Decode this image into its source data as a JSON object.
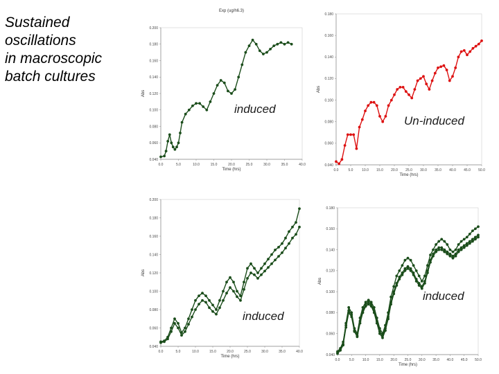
{
  "headline": [
    "Sustained",
    "oscillations",
    "in macroscopic",
    "batch cultures"
  ],
  "chart_data": [
    {
      "type": "line",
      "title": "Exp (ug/h6.3)",
      "label": "induced",
      "xlabel": "Time (hrs)",
      "ylabel": "Abs",
      "color": "#1b4d1b",
      "xticks": [
        "0.0",
        "5.0",
        "10.0",
        "15.0",
        "20.0",
        "25.0",
        "30.0",
        "35.0",
        "40.0"
      ],
      "yticks": [
        "0.040",
        "0.060",
        "0.080",
        "0.100",
        "0.120",
        "0.140",
        "0.160",
        "0.180",
        "0.200"
      ],
      "xlim": [
        0,
        40
      ],
      "ylim": [
        0.04,
        0.2
      ],
      "series": [
        {
          "x": [
            0,
            1,
            1.5,
            2,
            2.5,
            3,
            3.5,
            4,
            4.5,
            5,
            5.5,
            6,
            7,
            8,
            9,
            10,
            11,
            12,
            13,
            14,
            15,
            16,
            17,
            18,
            19,
            20,
            21,
            22,
            23,
            24,
            25,
            26,
            27,
            28,
            29,
            30,
            31,
            32,
            33,
            34,
            35,
            36,
            37
          ],
          "y": [
            0.043,
            0.044,
            0.05,
            0.062,
            0.07,
            0.06,
            0.055,
            0.052,
            0.055,
            0.06,
            0.072,
            0.085,
            0.095,
            0.1,
            0.105,
            0.108,
            0.108,
            0.104,
            0.1,
            0.11,
            0.12,
            0.13,
            0.136,
            0.133,
            0.123,
            0.12,
            0.125,
            0.14,
            0.155,
            0.17,
            0.178,
            0.185,
            0.18,
            0.172,
            0.168,
            0.17,
            0.174,
            0.178,
            0.18,
            0.182,
            0.18,
            0.182,
            0.18
          ]
        }
      ]
    },
    {
      "type": "line",
      "label": "Un-induced",
      "xlabel": "Time (hrs)",
      "ylabel": "Abs",
      "color": "#dd1010",
      "xticks": [
        "0.0",
        "5.0",
        "10.0",
        "15.0",
        "20.0",
        "25.0",
        "30.0",
        "35.0",
        "40.0",
        "45.0",
        "50.0"
      ],
      "yticks": [
        "0.040",
        "0.060",
        "0.080",
        "0.100",
        "0.120",
        "0.140",
        "0.160",
        "0.180"
      ],
      "xlim": [
        0,
        50
      ],
      "ylim": [
        0.04,
        0.18
      ],
      "series": [
        {
          "x": [
            0,
            1,
            2,
            3,
            4,
            5,
            6,
            7,
            8,
            9,
            10,
            11,
            12,
            13,
            14,
            15,
            16,
            17,
            18,
            19,
            20,
            21,
            22,
            23,
            24,
            25,
            26,
            27,
            28,
            29,
            30,
            31,
            32,
            33,
            34,
            35,
            36,
            37,
            38,
            39,
            40,
            41,
            42,
            43,
            44,
            45,
            46,
            47,
            48,
            49,
            50
          ],
          "y": [
            0.043,
            0.041,
            0.045,
            0.058,
            0.068,
            0.068,
            0.068,
            0.055,
            0.075,
            0.082,
            0.09,
            0.095,
            0.098,
            0.098,
            0.095,
            0.085,
            0.08,
            0.085,
            0.095,
            0.1,
            0.105,
            0.11,
            0.112,
            0.112,
            0.108,
            0.105,
            0.102,
            0.11,
            0.118,
            0.12,
            0.122,
            0.115,
            0.11,
            0.118,
            0.125,
            0.13,
            0.131,
            0.132,
            0.128,
            0.118,
            0.122,
            0.13,
            0.14,
            0.145,
            0.146,
            0.142,
            0.145,
            0.148,
            0.15,
            0.152,
            0.155
          ]
        }
      ]
    },
    {
      "type": "line",
      "label": "induced",
      "xlabel": "Time (hrs)",
      "ylabel": "Abs",
      "color": "#1b4d1b",
      "xticks": [
        "0.0",
        "5.0",
        "10.0",
        "15.0",
        "20.0",
        "25.0",
        "30.0",
        "35.0",
        "40.0"
      ],
      "yticks": [
        "0.040",
        "0.060",
        "0.080",
        "0.100",
        "0.120",
        "0.140",
        "0.160",
        "0.180",
        "0.200"
      ],
      "xlim": [
        0,
        40
      ],
      "ylim": [
        0.04,
        0.2
      ],
      "series": [
        {
          "x": [
            0,
            1,
            2,
            3,
            4,
            5,
            6,
            7,
            8,
            9,
            10,
            11,
            12,
            13,
            14,
            15,
            16,
            17,
            18,
            19,
            20,
            21,
            22,
            23,
            24,
            25,
            26,
            27,
            28,
            29,
            30,
            31,
            32,
            33,
            34,
            35,
            36,
            37,
            38,
            39,
            40
          ],
          "y": [
            0.045,
            0.046,
            0.05,
            0.06,
            0.07,
            0.065,
            0.055,
            0.06,
            0.07,
            0.08,
            0.09,
            0.095,
            0.098,
            0.095,
            0.09,
            0.085,
            0.08,
            0.09,
            0.1,
            0.11,
            0.115,
            0.11,
            0.1,
            0.095,
            0.11,
            0.125,
            0.13,
            0.125,
            0.12,
            0.125,
            0.13,
            0.135,
            0.14,
            0.145,
            0.148,
            0.152,
            0.158,
            0.165,
            0.17,
            0.175,
            0.19
          ]
        },
        {
          "x": [
            0,
            1,
            2,
            3,
            4,
            5,
            6,
            7,
            8,
            9,
            10,
            11,
            12,
            13,
            14,
            15,
            16,
            17,
            18,
            19,
            20,
            21,
            22,
            23,
            24,
            25,
            26,
            27,
            28,
            29,
            30,
            31,
            32,
            33,
            34,
            35,
            36,
            37,
            38,
            39,
            40
          ],
          "y": [
            0.044,
            0.045,
            0.048,
            0.056,
            0.065,
            0.06,
            0.052,
            0.056,
            0.064,
            0.072,
            0.08,
            0.086,
            0.09,
            0.088,
            0.082,
            0.078,
            0.075,
            0.082,
            0.09,
            0.098,
            0.104,
            0.1,
            0.094,
            0.09,
            0.102,
            0.114,
            0.12,
            0.118,
            0.114,
            0.118,
            0.122,
            0.126,
            0.13,
            0.134,
            0.138,
            0.142,
            0.147,
            0.152,
            0.158,
            0.162,
            0.17
          ]
        }
      ]
    },
    {
      "type": "line",
      "label": "induced",
      "xlabel": "Time (hrs)",
      "ylabel": "Abs",
      "color": "#1b4d1b",
      "xticks": [
        "0.0",
        "5.0",
        "10.0",
        "15.0",
        "20.0",
        "25.0",
        "30.0",
        "35.0",
        "40.0",
        "45.0",
        "50.0"
      ],
      "yticks": [
        "0.040",
        "0.060",
        "0.080",
        "0.100",
        "0.120",
        "0.140",
        "0.160",
        "0.180"
      ],
      "xlim": [
        0,
        50
      ],
      "ylim": [
        0.04,
        0.18
      ],
      "series": [
        {
          "x": [
            0,
            1,
            2,
            3,
            4,
            5,
            6,
            7,
            8,
            9,
            10,
            11,
            12,
            13,
            14,
            15,
            16,
            17,
            18,
            19,
            20,
            21,
            22,
            23,
            24,
            25,
            26,
            27,
            28,
            29,
            30,
            31,
            32,
            33,
            34,
            35,
            36,
            37,
            38,
            39,
            40,
            41,
            42,
            43,
            44,
            45,
            46,
            47,
            48,
            49,
            50
          ],
          "y": [
            0.042,
            0.045,
            0.05,
            0.07,
            0.085,
            0.08,
            0.065,
            0.06,
            0.075,
            0.085,
            0.09,
            0.092,
            0.09,
            0.085,
            0.075,
            0.065,
            0.06,
            0.068,
            0.08,
            0.095,
            0.105,
            0.115,
            0.12,
            0.125,
            0.13,
            0.132,
            0.13,
            0.125,
            0.12,
            0.115,
            0.11,
            0.115,
            0.125,
            0.135,
            0.14,
            0.145,
            0.148,
            0.15,
            0.148,
            0.145,
            0.14,
            0.138,
            0.14,
            0.145,
            0.148,
            0.15,
            0.152,
            0.155,
            0.158,
            0.16,
            0.162
          ]
        },
        {
          "x": [
            0,
            1,
            2,
            3,
            4,
            5,
            6,
            7,
            8,
            9,
            10,
            11,
            12,
            13,
            14,
            15,
            16,
            17,
            18,
            19,
            20,
            21,
            22,
            23,
            24,
            25,
            26,
            27,
            28,
            29,
            30,
            31,
            32,
            33,
            34,
            35,
            36,
            37,
            38,
            39,
            40,
            41,
            42,
            43,
            44,
            45,
            46,
            47,
            48,
            49,
            50
          ],
          "y": [
            0.043,
            0.046,
            0.052,
            0.068,
            0.082,
            0.078,
            0.063,
            0.058,
            0.072,
            0.082,
            0.088,
            0.09,
            0.088,
            0.082,
            0.072,
            0.062,
            0.058,
            0.065,
            0.076,
            0.09,
            0.1,
            0.108,
            0.114,
            0.118,
            0.122,
            0.124,
            0.122,
            0.118,
            0.112,
            0.108,
            0.105,
            0.11,
            0.12,
            0.13,
            0.136,
            0.14,
            0.142,
            0.142,
            0.14,
            0.138,
            0.136,
            0.134,
            0.136,
            0.14,
            0.142,
            0.144,
            0.146,
            0.148,
            0.15,
            0.152,
            0.154
          ]
        },
        {
          "x": [
            0,
            1,
            2,
            3,
            4,
            5,
            6,
            7,
            8,
            9,
            10,
            11,
            12,
            13,
            14,
            15,
            16,
            17,
            18,
            19,
            20,
            21,
            22,
            23,
            24,
            25,
            26,
            27,
            28,
            29,
            30,
            31,
            32,
            33,
            34,
            35,
            36,
            37,
            38,
            39,
            40,
            41,
            42,
            43,
            44,
            45,
            46,
            47,
            48,
            49,
            50
          ],
          "y": [
            0.041,
            0.044,
            0.049,
            0.066,
            0.08,
            0.076,
            0.062,
            0.057,
            0.07,
            0.08,
            0.086,
            0.088,
            0.086,
            0.08,
            0.07,
            0.06,
            0.056,
            0.063,
            0.074,
            0.088,
            0.098,
            0.106,
            0.112,
            0.116,
            0.12,
            0.122,
            0.12,
            0.116,
            0.11,
            0.106,
            0.103,
            0.108,
            0.118,
            0.128,
            0.134,
            0.138,
            0.14,
            0.14,
            0.138,
            0.136,
            0.134,
            0.132,
            0.134,
            0.138,
            0.14,
            0.142,
            0.144,
            0.146,
            0.148,
            0.15,
            0.152
          ]
        }
      ]
    }
  ]
}
